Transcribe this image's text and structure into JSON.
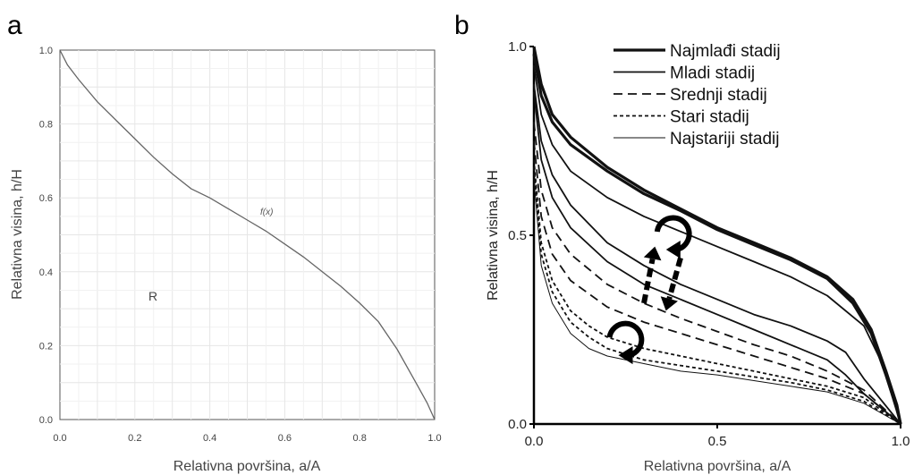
{
  "chart_data": [
    {
      "type": "line",
      "panel_label": "a",
      "xlabel": "Relativna površina, a/A",
      "ylabel": "Relativna visina, h/H",
      "xlim": [
        0.0,
        1.0
      ],
      "ylim": [
        0.0,
        1.0
      ],
      "xticks": [
        "0.0",
        "0.2",
        "0.4",
        "0.6",
        "0.8",
        "1.0"
      ],
      "yticks": [
        "0.0",
        "0.2",
        "0.4",
        "0.6",
        "0.8",
        "1.0"
      ],
      "grid": true,
      "annotations": [
        "f(x)",
        "R"
      ],
      "series": [
        {
          "x": [
            0.0,
            0.02,
            0.05,
            0.1,
            0.15,
            0.2,
            0.25,
            0.3,
            0.35,
            0.4,
            0.45,
            0.5,
            0.55,
            0.6,
            0.65,
            0.7,
            0.75,
            0.8,
            0.85,
            0.9,
            0.95,
            0.98,
            1.0
          ],
          "y": [
            1.0,
            0.96,
            0.92,
            0.86,
            0.81,
            0.76,
            0.71,
            0.665,
            0.625,
            0.6,
            0.57,
            0.54,
            0.51,
            0.475,
            0.44,
            0.4,
            0.36,
            0.315,
            0.265,
            0.19,
            0.1,
            0.045,
            0.0
          ]
        }
      ]
    },
    {
      "type": "line",
      "panel_label": "b",
      "xlabel": "Relativna površina, a/A",
      "ylabel": "Relativna visina, h/H",
      "xlim": [
        0.0,
        1.0
      ],
      "ylim": [
        0.0,
        1.0
      ],
      "xticks": [
        "0.0",
        "0.5",
        "1.0"
      ],
      "yticks": [
        "0.0",
        "0.5",
        "1.0"
      ],
      "grid": false,
      "legend_position": "top-right",
      "series": [
        {
          "name": "Najmlađi stadij",
          "style": "thick-solid",
          "curves": [
            {
              "x": [
                0.0,
                0.02,
                0.05,
                0.1,
                0.2,
                0.3,
                0.4,
                0.5,
                0.6,
                0.7,
                0.8,
                0.87,
                0.92,
                0.96,
                0.99,
                1.0
              ],
              "y": [
                1.0,
                0.9,
                0.82,
                0.76,
                0.68,
                0.62,
                0.57,
                0.52,
                0.48,
                0.44,
                0.39,
                0.33,
                0.25,
                0.14,
                0.05,
                0.0
              ]
            },
            {
              "x": [
                0.0,
                0.02,
                0.05,
                0.1,
                0.2,
                0.3,
                0.4,
                0.5,
                0.6,
                0.7,
                0.8,
                0.87,
                0.92,
                0.96,
                0.99,
                1.0
              ],
              "y": [
                0.98,
                0.87,
                0.8,
                0.74,
                0.67,
                0.61,
                0.565,
                0.515,
                0.475,
                0.435,
                0.385,
                0.32,
                0.24,
                0.13,
                0.04,
                0.0
              ]
            }
          ]
        },
        {
          "name": "Mladi stadij",
          "style": "solid",
          "curves": [
            {
              "x": [
                0.0,
                0.02,
                0.05,
                0.1,
                0.2,
                0.3,
                0.4,
                0.5,
                0.6,
                0.7,
                0.8,
                0.9,
                0.95,
                1.0
              ],
              "y": [
                0.95,
                0.82,
                0.74,
                0.67,
                0.6,
                0.55,
                0.51,
                0.47,
                0.43,
                0.39,
                0.34,
                0.26,
                0.16,
                0.0
              ]
            },
            {
              "x": [
                0.0,
                0.02,
                0.05,
                0.1,
                0.2,
                0.3,
                0.4,
                0.5,
                0.6,
                0.7,
                0.8,
                0.85,
                0.9,
                0.95,
                1.0
              ],
              "y": [
                0.9,
                0.75,
                0.66,
                0.58,
                0.48,
                0.42,
                0.37,
                0.33,
                0.29,
                0.26,
                0.22,
                0.19,
                0.12,
                0.06,
                0.0
              ]
            },
            {
              "x": [
                0.0,
                0.02,
                0.05,
                0.1,
                0.2,
                0.3,
                0.4,
                0.5,
                0.6,
                0.7,
                0.8,
                0.85,
                0.9,
                0.95,
                1.0
              ],
              "y": [
                0.88,
                0.7,
                0.6,
                0.52,
                0.43,
                0.37,
                0.33,
                0.29,
                0.25,
                0.21,
                0.17,
                0.13,
                0.08,
                0.04,
                0.0
              ]
            }
          ]
        },
        {
          "name": "Srednji stadij",
          "style": "dashed",
          "curves": [
            {
              "x": [
                0.0,
                0.02,
                0.05,
                0.1,
                0.2,
                0.3,
                0.4,
                0.5,
                0.6,
                0.7,
                0.8,
                0.9,
                1.0
              ],
              "y": [
                0.8,
                0.62,
                0.52,
                0.45,
                0.37,
                0.32,
                0.28,
                0.245,
                0.21,
                0.18,
                0.14,
                0.09,
                0.0
              ]
            },
            {
              "x": [
                0.0,
                0.02,
                0.05,
                0.1,
                0.2,
                0.3,
                0.4,
                0.5,
                0.6,
                0.7,
                0.8,
                0.9,
                1.0
              ],
              "y": [
                0.75,
                0.55,
                0.45,
                0.38,
                0.31,
                0.27,
                0.24,
                0.21,
                0.18,
                0.15,
                0.12,
                0.08,
                0.0
              ]
            }
          ]
        },
        {
          "name": "Stari stadij",
          "style": "dotted",
          "curves": [
            {
              "x": [
                0.0,
                0.02,
                0.05,
                0.1,
                0.15,
                0.2,
                0.3,
                0.4,
                0.5,
                0.6,
                0.7,
                0.8,
                0.9,
                1.0
              ],
              "y": [
                0.7,
                0.48,
                0.38,
                0.3,
                0.26,
                0.23,
                0.2,
                0.18,
                0.16,
                0.14,
                0.12,
                0.1,
                0.07,
                0.0
              ]
            },
            {
              "x": [
                0.0,
                0.02,
                0.05,
                0.1,
                0.15,
                0.2,
                0.3,
                0.4,
                0.5,
                0.6,
                0.7,
                0.8,
                0.9,
                1.0
              ],
              "y": [
                0.68,
                0.45,
                0.35,
                0.27,
                0.23,
                0.2,
                0.17,
                0.155,
                0.14,
                0.125,
                0.11,
                0.09,
                0.06,
                0.0
              ]
            }
          ]
        },
        {
          "name": "Najstariji stadij",
          "style": "thin-solid",
          "curves": [
            {
              "x": [
                0.0,
                0.02,
                0.05,
                0.1,
                0.15,
                0.2,
                0.3,
                0.4,
                0.5,
                0.6,
                0.7,
                0.8,
                0.9,
                1.0
              ],
              "y": [
                0.65,
                0.42,
                0.32,
                0.24,
                0.2,
                0.18,
                0.16,
                0.14,
                0.13,
                0.115,
                0.1,
                0.085,
                0.055,
                0.0
              ]
            }
          ]
        }
      ],
      "arrows": [
        {
          "kind": "curved",
          "at": [
            0.38,
            0.5
          ]
        },
        {
          "kind": "straight",
          "from": [
            0.3,
            0.32
          ],
          "to": [
            0.33,
            0.47
          ]
        },
        {
          "kind": "straight",
          "from": [
            0.4,
            0.44
          ],
          "to": [
            0.36,
            0.3
          ]
        },
        {
          "kind": "curved",
          "at": [
            0.25,
            0.22
          ]
        }
      ]
    }
  ]
}
